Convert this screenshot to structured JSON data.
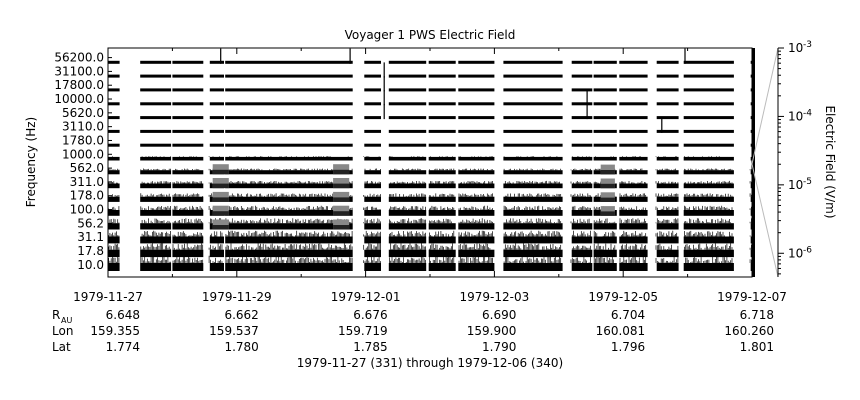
{
  "chart_data": {
    "type": "heatmap",
    "title": "Voyager 1 PWS Electric Field",
    "ylabel": "Frequency (Hz)",
    "colorbar_label": "Electric Field (V/m)",
    "colorbar_scale": "log",
    "colorbar_range": [
      4.5e-07,
      0.001
    ],
    "colorbar_ticks": [
      {
        "value": 0.001,
        "base": "10",
        "exp": "-3"
      },
      {
        "value": 0.0001,
        "base": "10",
        "exp": "-4"
      },
      {
        "value": 1e-05,
        "base": "10",
        "exp": "-5"
      },
      {
        "value": 1e-06,
        "base": "10",
        "exp": "-6"
      }
    ],
    "channels": [
      "10.0",
      "17.8",
      "31.1",
      "56.2",
      "100.0",
      "178.0",
      "311.0",
      "562.0",
      "1000.0",
      "1780.0",
      "3110.0",
      "5620.0",
      "10000.0",
      "17800.0",
      "31100.0",
      "56200.0"
    ],
    "x_start": "1979-11-27",
    "x_end": "1979-12-07",
    "x_tick_labels": [
      "1979-11-27",
      "1979-11-29",
      "1979-12-01",
      "1979-12-03",
      "1979-12-05",
      "1979-12-07"
    ],
    "ephemeris": {
      "rows": [
        {
          "label": "R",
          "sub": "AU",
          "values": [
            "6.648",
            "6.662",
            "6.676",
            "6.690",
            "6.704",
            "6.718"
          ]
        },
        {
          "label": "Lon",
          "values": [
            "159.355",
            "159.537",
            "159.719",
            "159.900",
            "160.081",
            "160.260"
          ]
        },
        {
          "label": "Lat",
          "values": [
            "1.774",
            "1.780",
            "1.785",
            "1.790",
            "1.796",
            "1.801"
          ]
        }
      ]
    },
    "xlabel": "1979-11-27 (331) through 1979-12-06 (340)",
    "data_gaps_days": [
      [
        0.18,
        0.5
      ],
      [
        0.98,
        1.0
      ],
      [
        1.48,
        1.57
      ],
      [
        1.79,
        1.82
      ],
      [
        3.8,
        3.97
      ],
      [
        4.23,
        4.35
      ],
      [
        4.93,
        4.97
      ],
      [
        5.38,
        5.43
      ],
      [
        5.98,
        6.13
      ],
      [
        7.04,
        7.18
      ],
      [
        7.5,
        7.53
      ],
      [
        7.88,
        7.93
      ],
      [
        8.36,
        8.5
      ],
      [
        8.85,
        8.93
      ],
      [
        9.7,
        9.96
      ]
    ],
    "bursts": [
      {
        "day": 1.75,
        "channels": [
          3,
          4,
          5,
          6,
          7
        ],
        "level": 0.55,
        "width": 0.25
      },
      {
        "day": 3.62,
        "channels": [
          3,
          4,
          5,
          6,
          7
        ],
        "level": 0.55,
        "width": 0.25
      },
      {
        "day": 7.76,
        "channels": [
          4,
          5,
          6,
          7
        ],
        "level": 0.5,
        "width": 0.22
      },
      {
        "day": 1.75,
        "channels": [
          15
        ],
        "level": 0.7,
        "width": 0.02
      },
      {
        "day": 3.76,
        "channels": [
          15
        ],
        "level": 0.9,
        "width": 0.02
      },
      {
        "day": 4.3,
        "channels": [
          14,
          13,
          12,
          11
        ],
        "level": 0.6,
        "width": 0.04
      },
      {
        "day": 7.44,
        "channels": [
          12,
          11
        ],
        "level": 0.5,
        "width": 0.02
      },
      {
        "day": 8.6,
        "channels": [
          10
        ],
        "level": 0.5,
        "width": 0.02
      },
      {
        "day": 8.96,
        "channels": [
          15
        ],
        "level": 0.6,
        "width": 0.02
      }
    ]
  }
}
